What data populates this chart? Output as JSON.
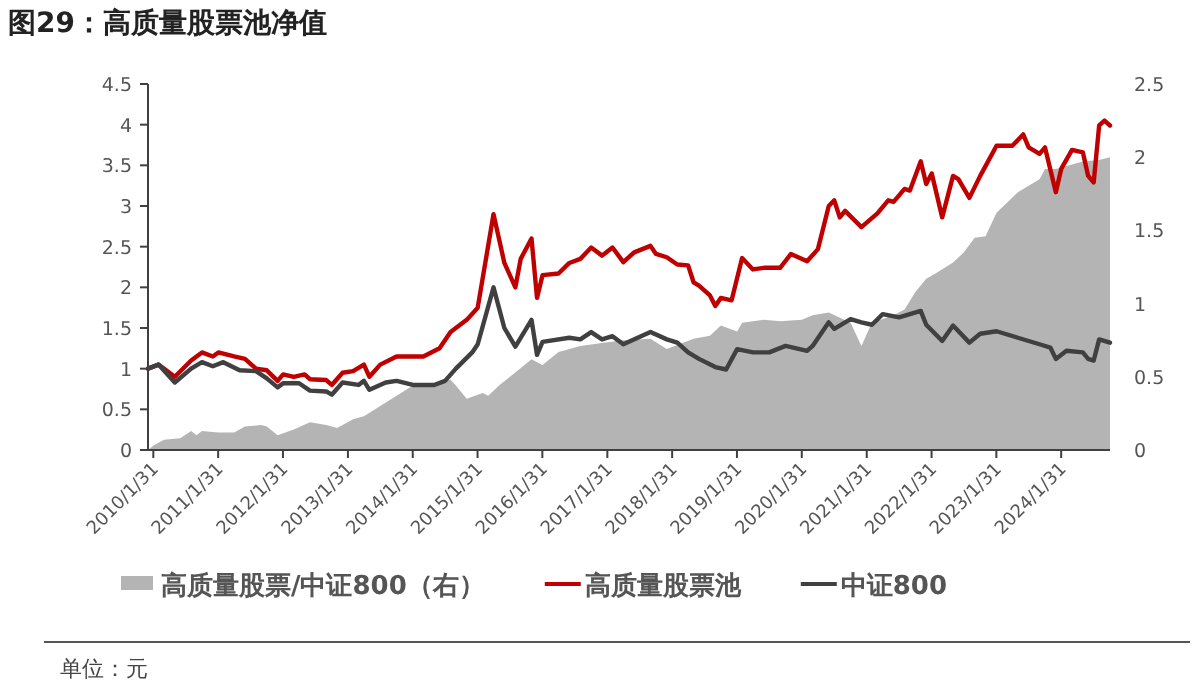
{
  "chart_data": {
    "type": "line",
    "title": "图29：高质量股票池净值",
    "annotations": [
      "单位：元"
    ],
    "legend": "bottom",
    "xlim": [
      "2010-01",
      "2024-11"
    ],
    "xticks": [
      {
        "value": "2010-01-31",
        "label": "2010/1/31"
      },
      {
        "value": "2011-01-31",
        "label": "2011/1/31"
      },
      {
        "value": "2012-01-31",
        "label": "2012/1/31"
      },
      {
        "value": "2013-01-31",
        "label": "2013/1/31"
      },
      {
        "value": "2014-01-31",
        "label": "2014/1/31"
      },
      {
        "value": "2015-01-31",
        "label": "2015/1/31"
      },
      {
        "value": "2016-01-31",
        "label": "2016/1/31"
      },
      {
        "value": "2017-01-31",
        "label": "2017/1/31"
      },
      {
        "value": "2018-01-31",
        "label": "2018/1/31"
      },
      {
        "value": "2019-01-31",
        "label": "2019/1/31"
      },
      {
        "value": "2020-01-31",
        "label": "2020/1/31"
      },
      {
        "value": "2021-01-31",
        "label": "2021/1/31"
      },
      {
        "value": "2022-01-31",
        "label": "2022/1/31"
      },
      {
        "value": "2023-01-31",
        "label": "2023/1/31"
      },
      {
        "value": "2024-01-31",
        "label": "2024/1/31"
      }
    ],
    "ylim": [
      0,
      4.5
    ],
    "yticks": [
      0,
      0.5,
      1,
      1.5,
      2,
      2.5,
      3,
      3.5,
      4,
      4.5
    ],
    "y2lim": [
      0,
      2.5
    ],
    "y2ticks": [
      0,
      0.5,
      1,
      1.5,
      2,
      2.5
    ],
    "series": [
      {
        "name": "高质量股票/中证800（右）",
        "type": "area",
        "axis": "y2",
        "color": "#b4b4b4",
        "x": [
          "2010-01",
          "2010-02",
          "2010-04",
          "2010-07",
          "2010-09",
          "2010-10",
          "2010-11",
          "2011-02",
          "2011-05",
          "2011-07",
          "2011-10",
          "2011-11",
          "2012-01",
          "2012-04",
          "2012-07",
          "2012-10",
          "2012-12",
          "2013-03",
          "2013-05",
          "2013-08",
          "2013-11",
          "2014-02",
          "2014-06",
          "2014-09",
          "2014-10",
          "2014-12",
          "2015-03",
          "2015-04",
          "2015-06",
          "2015-09",
          "2015-12",
          "2016-02",
          "2016-05",
          "2016-09",
          "2017-01",
          "2017-05",
          "2017-10",
          "2018-01",
          "2018-06",
          "2018-09",
          "2018-11",
          "2019-02",
          "2019-03",
          "2019-07",
          "2019-10",
          "2020-02",
          "2020-04",
          "2020-07",
          "2020-11",
          "2021-01",
          "2021-03",
          "2021-07",
          "2021-09",
          "2021-11",
          "2022-01",
          "2022-03",
          "2022-06",
          "2022-08",
          "2022-10",
          "2022-12",
          "2023-02",
          "2023-06",
          "2023-10",
          "2023-11",
          "2024-01",
          "2024-03",
          "2024-06",
          "2024-09",
          "2024-11"
        ],
        "values": [
          0,
          0.03,
          0.07,
          0.08,
          0.13,
          0.1,
          0.13,
          0.12,
          0.12,
          0.16,
          0.17,
          0.16,
          0.1,
          0.14,
          0.19,
          0.17,
          0.15,
          0.21,
          0.23,
          0.3,
          0.37,
          0.44,
          0.46,
          0.48,
          0.44,
          0.35,
          0.39,
          0.37,
          0.44,
          0.53,
          0.62,
          0.58,
          0.67,
          0.71,
          0.73,
          0.75,
          0.76,
          0.69,
          0.76,
          0.78,
          0.85,
          0.81,
          0.87,
          0.89,
          0.88,
          0.89,
          0.92,
          0.94,
          0.87,
          0.71,
          0.87,
          0.92,
          0.96,
          1.08,
          1.17,
          1.21,
          1.28,
          1.35,
          1.45,
          1.46,
          1.62,
          1.76,
          1.85,
          1.92,
          1.92,
          1.94,
          1.97,
          1.98,
          2.0
        ]
      },
      {
        "name": "高质量股票池",
        "type": "line",
        "color": "#c00000",
        "x": [
          "2010-01",
          "2010-03",
          "2010-06",
          "2010-09",
          "2010-11",
          "2011-01",
          "2011-02",
          "2011-05",
          "2011-07",
          "2011-09",
          "2011-11",
          "2012-01",
          "2012-02",
          "2012-04",
          "2012-06",
          "2012-07",
          "2012-10",
          "2012-11",
          "2013-01",
          "2013-03",
          "2013-05",
          "2013-06",
          "2013-08",
          "2013-11",
          "2014-02",
          "2014-04",
          "2014-07",
          "2014-09",
          "2014-12",
          "2015-02",
          "2015-05",
          "2015-07",
          "2015-09",
          "2015-10",
          "2015-12",
          "2016-01",
          "2016-02",
          "2016-05",
          "2016-07",
          "2016-09",
          "2016-11",
          "2017-01",
          "2017-03",
          "2017-05",
          "2017-07",
          "2017-10",
          "2017-11",
          "2018-01",
          "2018-03",
          "2018-05",
          "2018-06",
          "2018-07",
          "2018-09",
          "2018-10",
          "2018-11",
          "2019-01",
          "2019-03",
          "2019-05",
          "2019-07",
          "2019-10",
          "2019-12",
          "2020-03",
          "2020-05",
          "2020-07",
          "2020-08",
          "2020-09",
          "2020-10",
          "2021-01",
          "2021-04",
          "2021-06",
          "2021-07",
          "2021-09",
          "2021-10",
          "2021-12",
          "2022-01",
          "2022-02",
          "2022-04",
          "2022-06",
          "2022-07",
          "2022-09",
          "2022-11",
          "2023-02",
          "2023-05",
          "2023-07",
          "2023-08",
          "2023-10",
          "2023-11",
          "2024-01",
          "2024-02",
          "2024-04",
          "2024-06",
          "2024-07",
          "2024-08",
          "2024-09",
          "2024-10",
          "2024-11"
        ],
        "values": [
          1.0,
          1.05,
          0.9,
          1.1,
          1.2,
          1.15,
          1.2,
          1.15,
          1.12,
          1.0,
          0.98,
          0.85,
          0.93,
          0.9,
          0.93,
          0.87,
          0.86,
          0.8,
          0.95,
          0.97,
          1.05,
          0.9,
          1.05,
          1.15,
          1.15,
          1.15,
          1.25,
          1.45,
          1.6,
          1.75,
          2.9,
          2.3,
          2.0,
          2.35,
          2.6,
          1.87,
          2.15,
          2.17,
          2.3,
          2.35,
          2.49,
          2.39,
          2.49,
          2.31,
          2.43,
          2.51,
          2.41,
          2.37,
          2.28,
          2.27,
          2.06,
          2.02,
          1.9,
          1.77,
          1.87,
          1.84,
          2.36,
          2.22,
          2.24,
          2.24,
          2.41,
          2.32,
          2.47,
          3.0,
          3.07,
          2.86,
          2.94,
          2.74,
          2.91,
          3.07,
          3.05,
          3.21,
          3.19,
          3.55,
          3.27,
          3.4,
          2.86,
          3.37,
          3.33,
          3.1,
          3.37,
          3.74,
          3.74,
          3.88,
          3.72,
          3.64,
          3.72,
          3.17,
          3.46,
          3.69,
          3.66,
          3.37,
          3.29,
          3.99,
          4.05,
          3.99
        ]
      },
      {
        "name": "中证800",
        "type": "line",
        "color": "#404040",
        "x": [
          "2010-01",
          "2010-03",
          "2010-06",
          "2010-09",
          "2010-11",
          "2011-01",
          "2011-03",
          "2011-06",
          "2011-09",
          "2011-11",
          "2012-01",
          "2012-02",
          "2012-05",
          "2012-07",
          "2012-10",
          "2012-11",
          "2013-01",
          "2013-04",
          "2013-05",
          "2013-06",
          "2013-09",
          "2013-11",
          "2014-02",
          "2014-06",
          "2014-08",
          "2014-10",
          "2015-01",
          "2015-02",
          "2015-05",
          "2015-07",
          "2015-09",
          "2015-12",
          "2016-01",
          "2016-02",
          "2016-07",
          "2016-09",
          "2016-11",
          "2017-01",
          "2017-03",
          "2017-05",
          "2017-10",
          "2018-01",
          "2018-03",
          "2018-05",
          "2018-07",
          "2018-10",
          "2018-12",
          "2019-02",
          "2019-05",
          "2019-08",
          "2019-11",
          "2020-03",
          "2020-04",
          "2020-07",
          "2020-08",
          "2020-11",
          "2021-01",
          "2021-03",
          "2021-05",
          "2021-08",
          "2021-12",
          "2022-01",
          "2022-04",
          "2022-06",
          "2022-09",
          "2022-11",
          "2023-02",
          "2023-06",
          "2023-10",
          "2023-12",
          "2024-01",
          "2024-03",
          "2024-06",
          "2024-07",
          "2024-08",
          "2024-09",
          "2024-11"
        ],
        "values": [
          1.0,
          1.05,
          0.83,
          1.0,
          1.08,
          1.03,
          1.08,
          0.98,
          0.97,
          0.88,
          0.77,
          0.82,
          0.82,
          0.73,
          0.72,
          0.68,
          0.83,
          0.8,
          0.85,
          0.74,
          0.83,
          0.85,
          0.8,
          0.8,
          0.85,
          1.0,
          1.2,
          1.3,
          2.0,
          1.5,
          1.27,
          1.6,
          1.17,
          1.33,
          1.38,
          1.36,
          1.45,
          1.36,
          1.4,
          1.3,
          1.45,
          1.36,
          1.32,
          1.2,
          1.12,
          1.02,
          0.99,
          1.24,
          1.2,
          1.2,
          1.28,
          1.22,
          1.28,
          1.57,
          1.49,
          1.61,
          1.57,
          1.54,
          1.67,
          1.63,
          1.71,
          1.54,
          1.34,
          1.53,
          1.32,
          1.43,
          1.46,
          1.38,
          1.3,
          1.26,
          1.12,
          1.22,
          1.2,
          1.12,
          1.1,
          1.36,
          1.32
        ]
      }
    ]
  }
}
